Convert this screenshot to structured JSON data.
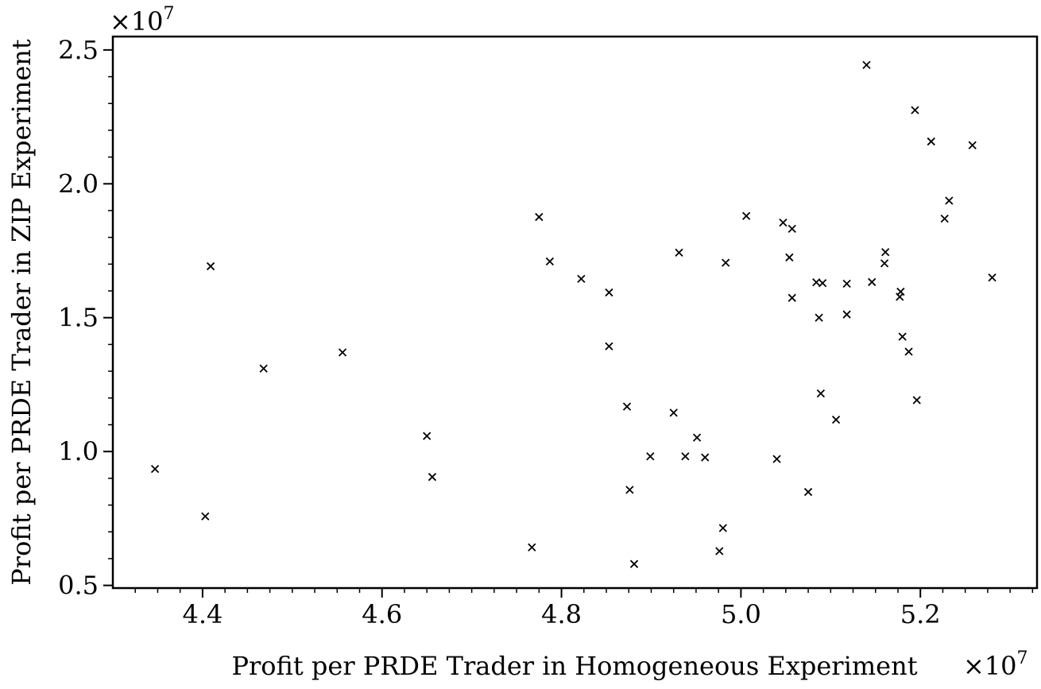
{
  "chart_data": {
    "type": "scatter",
    "xlabel": "Profit per PRDE Trader in Homogeneous Experiment",
    "ylabel": "Profit per PRDE Trader in ZIP Experiment",
    "x_multiplier": {
      "base": "×10",
      "exponent": "7"
    },
    "y_multiplier": {
      "base": "×10",
      "exponent": "7"
    },
    "xlim": [
      4.3,
      5.33
    ],
    "ylim": [
      0.49,
      2.55
    ],
    "x_ticks": [
      {
        "value": 4.4,
        "label": "4.4"
      },
      {
        "value": 4.6,
        "label": "4.6"
      },
      {
        "value": 4.8,
        "label": "4.8"
      },
      {
        "value": 5.0,
        "label": "5.0"
      },
      {
        "value": 5.2,
        "label": "5.2"
      }
    ],
    "y_ticks": [
      {
        "value": 0.5,
        "label": "0.5"
      },
      {
        "value": 1.0,
        "label": "1.0"
      },
      {
        "value": 1.5,
        "label": "1.5"
      },
      {
        "value": 2.0,
        "label": "2.0"
      },
      {
        "value": 2.5,
        "label": "2.5"
      }
    ],
    "marker": "x",
    "points": [
      [
        4.347,
        0.935
      ],
      [
        4.403,
        0.758
      ],
      [
        4.409,
        1.692
      ],
      [
        4.468,
        1.31
      ],
      [
        4.556,
        1.37
      ],
      [
        4.65,
        1.058
      ],
      [
        4.656,
        0.905
      ],
      [
        4.767,
        0.642
      ],
      [
        4.775,
        1.876
      ],
      [
        4.787,
        1.71
      ],
      [
        4.822,
        1.645
      ],
      [
        4.853,
        1.594
      ],
      [
        4.853,
        1.393
      ],
      [
        4.873,
        1.168
      ],
      [
        4.876,
        0.857
      ],
      [
        4.881,
        0.58
      ],
      [
        4.899,
        0.982
      ],
      [
        4.925,
        1.145
      ],
      [
        4.931,
        1.743
      ],
      [
        4.938,
        0.982
      ],
      [
        4.951,
        1.052
      ],
      [
        4.96,
        0.978
      ],
      [
        4.976,
        0.628
      ],
      [
        4.98,
        0.714
      ],
      [
        4.983,
        1.705
      ],
      [
        5.006,
        1.88
      ],
      [
        5.04,
        0.972
      ],
      [
        5.047,
        1.855
      ],
      [
        5.054,
        1.725
      ],
      [
        5.057,
        1.832
      ],
      [
        5.057,
        1.574
      ],
      [
        5.075,
        0.849
      ],
      [
        5.084,
        1.632
      ],
      [
        5.087,
        1.5
      ],
      [
        5.089,
        1.217
      ],
      [
        5.091,
        1.629
      ],
      [
        5.106,
        1.119
      ],
      [
        5.118,
        1.627
      ],
      [
        5.118,
        1.512
      ],
      [
        5.14,
        2.444
      ],
      [
        5.146,
        1.633
      ],
      [
        5.16,
        1.703
      ],
      [
        5.161,
        1.745
      ],
      [
        5.177,
        1.578
      ],
      [
        5.178,
        1.597
      ],
      [
        5.18,
        1.429
      ],
      [
        5.187,
        1.373
      ],
      [
        5.194,
        2.275
      ],
      [
        5.196,
        1.192
      ],
      [
        5.212,
        2.158
      ],
      [
        5.227,
        1.87
      ],
      [
        5.232,
        1.937
      ],
      [
        5.258,
        2.144
      ],
      [
        5.28,
        1.65
      ]
    ],
    "grid": false,
    "legend": false
  }
}
